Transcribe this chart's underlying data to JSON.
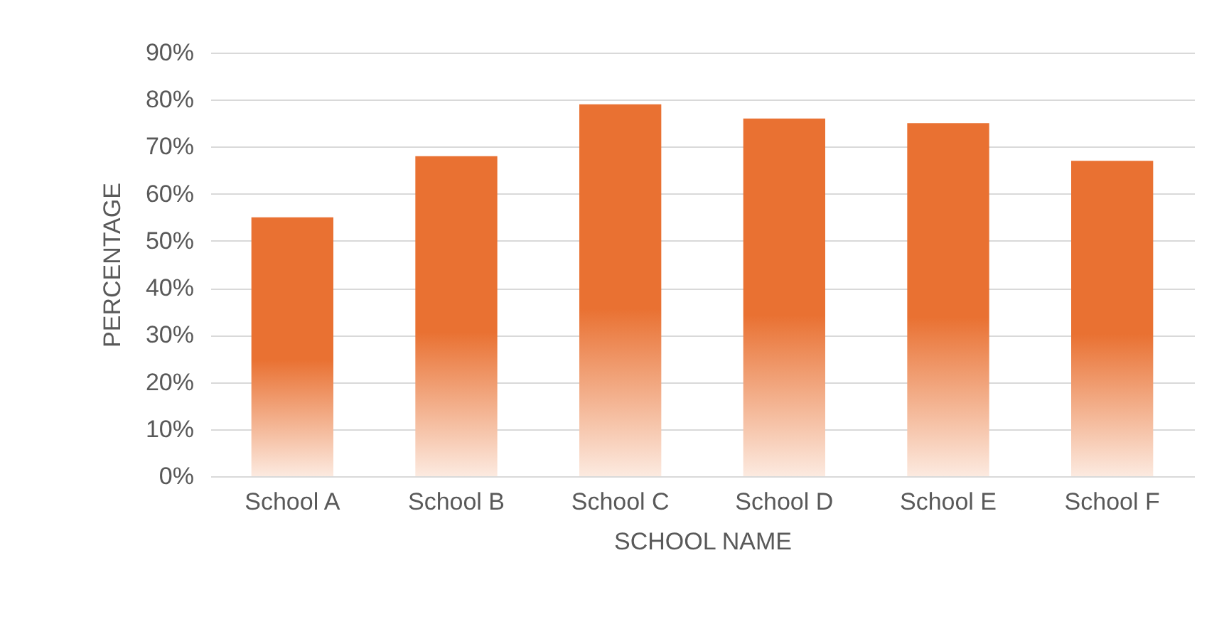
{
  "chart_data": {
    "type": "bar",
    "xlabel": "SCHOOL NAME",
    "ylabel": "PERCENTAGE",
    "categories": [
      "School A",
      "School B",
      "School C",
      "School D",
      "School E",
      "School F"
    ],
    "values": [
      55,
      68,
      79,
      76,
      75,
      67
    ],
    "color": "#e97132",
    "ylim": [
      0,
      90
    ],
    "yticks": [
      {
        "value": 0,
        "label": "0%"
      },
      {
        "value": 10,
        "label": "10%"
      },
      {
        "value": 20,
        "label": "20%"
      },
      {
        "value": 30,
        "label": "30%"
      },
      {
        "value": 40,
        "label": "40%"
      },
      {
        "value": 50,
        "label": "50%"
      },
      {
        "value": 60,
        "label": "60%"
      },
      {
        "value": 70,
        "label": "70%"
      },
      {
        "value": 80,
        "label": "80%"
      },
      {
        "value": 90,
        "label": "90%"
      }
    ],
    "grid": "y"
  }
}
